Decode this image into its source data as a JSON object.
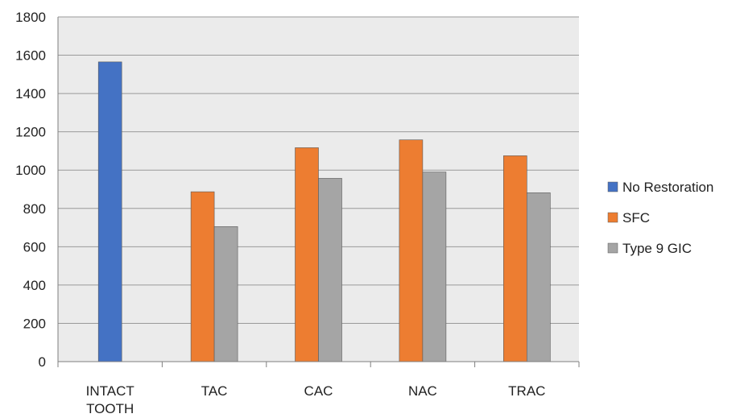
{
  "chart_data": {
    "type": "bar",
    "categories": [
      [
        "INTACT",
        "TOOTH"
      ],
      [
        "TAC"
      ],
      [
        "CAC"
      ],
      [
        "NAC"
      ],
      [
        "TRAC"
      ]
    ],
    "series": [
      {
        "name": "No Restoration",
        "color": "#4472C4",
        "values": [
          1565,
          null,
          null,
          null,
          null
        ]
      },
      {
        "name": "SFC",
        "color": "#ED7D31",
        "values": [
          null,
          887,
          1117,
          1158,
          1075
        ]
      },
      {
        "name": "Type 9 GIC",
        "color": "#A5A5A5",
        "values": [
          null,
          705,
          957,
          990,
          882
        ]
      }
    ],
    "ylim": [
      0,
      1800
    ],
    "yticks": [
      0,
      200,
      400,
      600,
      800,
      1000,
      1200,
      1400,
      1600,
      1800
    ],
    "grid": true,
    "plot_background": "#EBEBEB",
    "legend_position": "right"
  }
}
